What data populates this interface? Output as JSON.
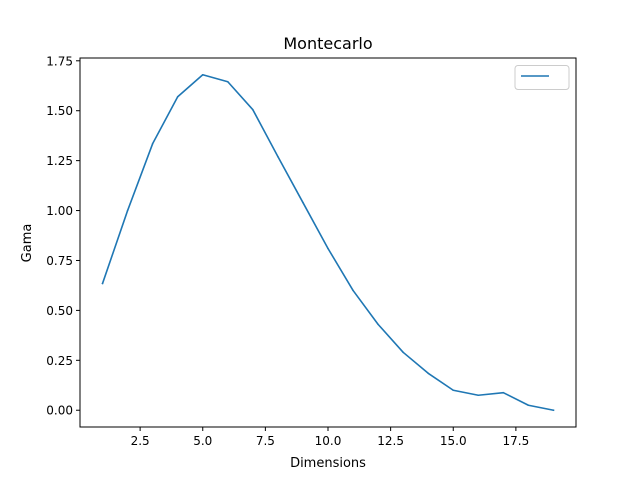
{
  "chart_data": {
    "type": "line",
    "title": "Montecarlo",
    "xlabel": "Dimensions",
    "ylabel": "Gama",
    "xlim": [
      0.1,
      19.9
    ],
    "ylim": [
      -0.084,
      1.764
    ],
    "x_ticks": [
      2.5,
      5.0,
      7.5,
      10.0,
      12.5,
      15.0,
      17.5
    ],
    "x_tick_labels": [
      "2.5",
      "5.0",
      "7.5",
      "10.0",
      "12.5",
      "15.0",
      "17.5"
    ],
    "y_ticks": [
      0.0,
      0.25,
      0.5,
      0.75,
      1.0,
      1.25,
      1.5,
      1.75
    ],
    "y_tick_labels": [
      "0.00",
      "0.25",
      "0.50",
      "0.75",
      "1.00",
      "1.25",
      "1.50",
      "1.75"
    ],
    "grid": false,
    "legend_position": "top-right",
    "series": [
      {
        "name": "",
        "color": "#1f77b4",
        "x": [
          1,
          2,
          3,
          4,
          5,
          6,
          7,
          8,
          9,
          10,
          11,
          12,
          13,
          14,
          15,
          16,
          17,
          18,
          19
        ],
        "y": [
          0.635,
          1.0,
          1.335,
          1.57,
          1.68,
          1.645,
          1.505,
          1.27,
          1.04,
          0.81,
          0.6,
          0.43,
          0.29,
          0.185,
          0.1,
          0.075,
          0.088,
          0.025,
          0.0
        ]
      }
    ]
  }
}
